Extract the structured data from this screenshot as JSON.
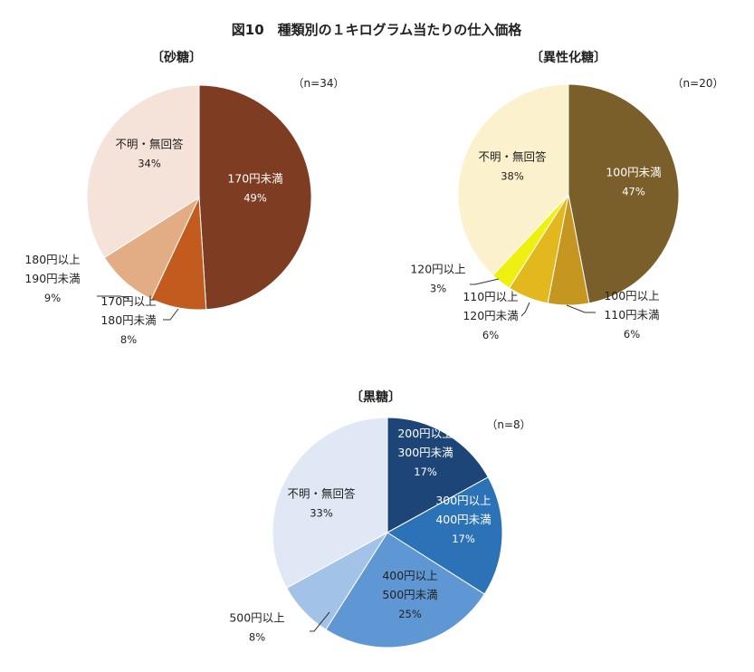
{
  "figure_title": "図10　種類別の１キログラム当たりの仕入価格",
  "chart_data": [
    {
      "type": "pie",
      "title": "〔砂糖〕",
      "n_label": "（n=34）",
      "slices": [
        {
          "lines": [
            "170円未満",
            "49%"
          ],
          "value": 49,
          "color": "#7e3d22",
          "text_color": "#ffffff"
        },
        {
          "lines": [
            "170円以上",
            "180円未満",
            "8%"
          ],
          "value": 8,
          "color": "#c45b1e",
          "text_color": "#222222"
        },
        {
          "lines": [
            "180円以上",
            "190円未満",
            "9%"
          ],
          "value": 9,
          "color": "#e2ad84",
          "text_color": "#222222"
        },
        {
          "lines": [
            "不明・無回答",
            "34%"
          ],
          "value": 34,
          "color": "#f5e2d9",
          "text_color": "#222222"
        }
      ]
    },
    {
      "type": "pie",
      "title": "〔異性化糖〕",
      "n_label": "（n=20）",
      "slices": [
        {
          "lines": [
            "100円未満",
            "47%"
          ],
          "value": 47,
          "color": "#7b5f2a",
          "text_color": "#ffffff"
        },
        {
          "lines": [
            "100円以上",
            "110円未満",
            "6%"
          ],
          "value": 6,
          "color": "#c59620",
          "text_color": "#222222"
        },
        {
          "lines": [
            "110円以上",
            "120円未満",
            "6%"
          ],
          "value": 6,
          "color": "#e3b81f",
          "text_color": "#222222"
        },
        {
          "lines": [
            "120円以上",
            "3%"
          ],
          "value": 3,
          "color": "#eef011",
          "text_color": "#222222"
        },
        {
          "lines": [
            "不明・無回答",
            "38%"
          ],
          "value": 38,
          "color": "#fbf1cd",
          "text_color": "#222222"
        }
      ]
    },
    {
      "type": "pie",
      "title": "〔黒糖〕",
      "n_label": "（n=8）",
      "slices": [
        {
          "lines": [
            "200円以上",
            "300円未満",
            "17%"
          ],
          "value": 17,
          "color": "#1d4577",
          "text_color": "#ffffff"
        },
        {
          "lines": [
            "300円以上",
            "400円未満",
            "17%"
          ],
          "value": 17,
          "color": "#2c72b7",
          "text_color": "#ffffff"
        },
        {
          "lines": [
            "400円以上",
            "500円未満",
            "25%"
          ],
          "value": 25,
          "color": "#5e97d4",
          "text_color": "#222222"
        },
        {
          "lines": [
            "500円以上",
            "8%"
          ],
          "value": 8,
          "color": "#a2c3e7",
          "text_color": "#222222"
        },
        {
          "lines": [
            "不明・無回答",
            "33%"
          ],
          "value": 33,
          "color": "#dfe8f4",
          "text_color": "#222222"
        }
      ]
    }
  ]
}
